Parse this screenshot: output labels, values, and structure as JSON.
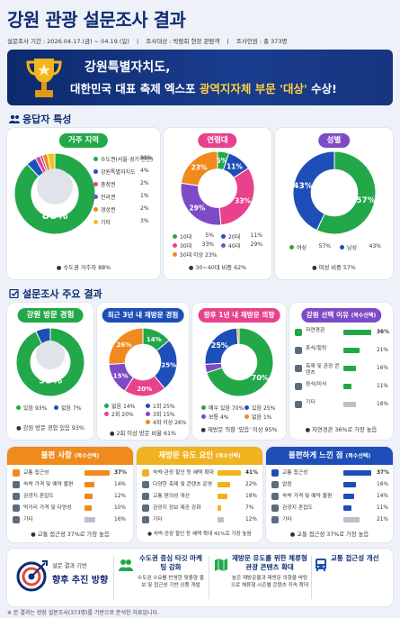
{
  "header": {
    "title": "강원 관광 설문조사 결과",
    "period": "설문조사 기간 : 2026.04.17.(금) ~ 04.19.(일)",
    "target": "조사대상 : 박람회 현장 관람객",
    "count": "조사인원 : 총 373명"
  },
  "banner": {
    "line1": "강원특별자치도,",
    "line2_pre": "대한민국 대표 축제 엑스포 ",
    "line2_hl": "광역지자체 부문 '대상'",
    "line2_post": " 수상!"
  },
  "sections": {
    "respondent": "응답자 특성",
    "results": "설문조사 주요 결과"
  },
  "colors": {
    "green": "#22a849",
    "orange": "#f08a1c",
    "blue": "#1e4fb8",
    "pink": "#e8418d",
    "purple": "#7e4bc6",
    "teal": "#1f9cc8",
    "navy": "#0e2c72",
    "red": "#e8473a",
    "gold": "#f0b21e"
  },
  "chart_data": [
    {
      "type": "pie",
      "title": "거주 지역",
      "categories": [
        "수도권(서울·경기·인천)",
        "강원특별자치도",
        "충청권",
        "전라권",
        "경상권",
        "기타"
      ],
      "values": [
        88,
        4,
        2,
        1,
        2,
        3
      ],
      "center_label": "88%",
      "note": "수도권 거주자 88%"
    },
    {
      "type": "pie",
      "title": "연령대",
      "categories": [
        "10대",
        "20대",
        "30대",
        "40대",
        "50대 이상"
      ],
      "values": [
        5,
        11,
        33,
        29,
        23
      ],
      "note": "30~40대 비중 62%"
    },
    {
      "type": "pie",
      "title": "성별",
      "categories": [
        "여성",
        "남성"
      ],
      "values": [
        57,
        43
      ],
      "note": "여성 비중 57%"
    },
    {
      "type": "pie",
      "title": "강원 방문 경험",
      "categories": [
        "있음",
        "없음"
      ],
      "values": [
        93,
        7
      ],
      "center_label": "93%",
      "note": "강원 방문 경험 있음 93%"
    },
    {
      "type": "pie",
      "title": "최근 3년 내 재방문 경험",
      "categories": [
        "없음",
        "1회",
        "2회",
        "3회",
        "4회 이상"
      ],
      "values": [
        14,
        25,
        20,
        15,
        26
      ],
      "note": "2회 이상 방문 비율 61%"
    },
    {
      "type": "pie",
      "title": "향후 1년 내 재방문 의향",
      "categories": [
        "매우 있음",
        "보통",
        "있음",
        "없음"
      ],
      "values": [
        70,
        4,
        25,
        1
      ],
      "note": "재방문 의향 '있음' 이상 95%"
    },
    {
      "type": "bar",
      "title": "강원 선택 이유",
      "subtitle": "(복수선택)",
      "categories": [
        "자연경관",
        "휴식/힐링",
        "축제 및 관광 콘텐츠",
        "음식/미식",
        "기타"
      ],
      "values": [
        36,
        21,
        16,
        11,
        16
      ],
      "note": "자연경관 36%로 가장 높음"
    },
    {
      "type": "bar",
      "title": "불편 사항",
      "subtitle": "(복수선택)",
      "categories": [
        "교통 접근성",
        "숙박 가격 및 예약 불편",
        "관광지 혼잡도",
        "먹거리 가격 및 다양성",
        "기타"
      ],
      "values": [
        37,
        14,
        12,
        10,
        16
      ],
      "note": "교통 접근성 37%로 가장 높음"
    },
    {
      "type": "bar",
      "title": "재방문 유도 요인",
      "subtitle": "(복수선택)",
      "categories": [
        "숙박·관광 할인 등 혜택 확대",
        "다양한 축제 및 콘텐츠 운영",
        "교통 편의성 개선",
        "관광지 정보 제공 강화",
        "기타"
      ],
      "values": [
        41,
        22,
        18,
        7,
        12
      ],
      "note": "숙박·관광 할인 등 혜택 확대 41%로 가장 높음"
    },
    {
      "type": "bar",
      "title": "불편하게 느낀 점",
      "subtitle": "(복수선택)",
      "categories": [
        "교통 접근성",
        "없음",
        "숙박 가격 및 예약 불편",
        "관광지 혼잡도",
        "기타"
      ],
      "values": [
        37,
        16,
        14,
        11,
        21
      ],
      "note": "교통 접근성 37%로 가장 높음"
    }
  ],
  "bottom": {
    "lead_small": "설문 결과 기반",
    "lead_big": "향후 추진 방향",
    "items": [
      {
        "title": "수도권 중심 타깃 마케팅 강화",
        "desc": "수도권 수요를 반영한 맞춤형 홍보 및 접근성 기반 상품 개발"
      },
      {
        "title": "재방문 유도를 위한 체류형 관광 콘텐츠 확대",
        "desc": "높은 재방문율과 재방문 의향을 바탕으로 체류형·시즌별 콘텐츠 지속 확대"
      },
      {
        "title": "교통 접근성 개선",
        "desc": ""
      }
    ]
  },
  "footnote": "※ 본 결과는 현장 설문조사(373명)를 기반으로 분석한 자료입니다."
}
